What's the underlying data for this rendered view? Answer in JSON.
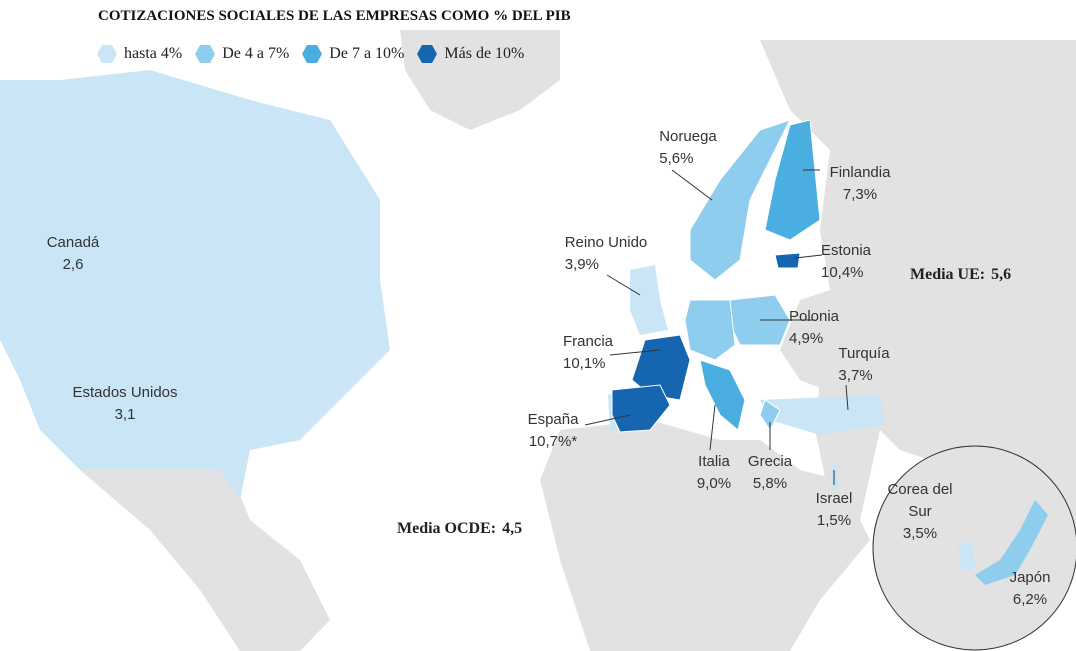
{
  "title": "COTIZACIONES SOCIALES DE LAS EMPRESAS COMO % DEL PIB",
  "legend": [
    {
      "label": "hasta 4%",
      "color": "#c9e5f6"
    },
    {
      "label": "De 4 a 7%",
      "color": "#8fcdee"
    },
    {
      "label": "De 7 a 10%",
      "color": "#4aaee0"
    },
    {
      "label": "Más de 10%",
      "color": "#1565b0"
    }
  ],
  "countries": [
    {
      "name": "Canadá",
      "value": "2,6"
    },
    {
      "name": "Estados Unidos",
      "value": "3,1"
    },
    {
      "name": "Noruega",
      "value": "5,6%"
    },
    {
      "name": "Finlandia",
      "value": "7,3%"
    },
    {
      "name": "Reino Unido",
      "value": "3,9%"
    },
    {
      "name": "Estonia",
      "value": "10,4%"
    },
    {
      "name": "Polonia",
      "value": "4,9%"
    },
    {
      "name": "Francia",
      "value": "10,1%"
    },
    {
      "name": "Turquía",
      "value": "3,7%"
    },
    {
      "name": "España",
      "value": "10,7%*"
    },
    {
      "name": "Italia",
      "value": "9,0%"
    },
    {
      "name": "Grecia",
      "value": "5,8%"
    },
    {
      "name": "Israel",
      "value": "1,5%"
    },
    {
      "name": "Corea del Sur",
      "value": "3,5%"
    },
    {
      "name": "Japón",
      "value": "6,2%"
    }
  ],
  "averages": [
    {
      "label": "Media UE:",
      "value": "5,6"
    },
    {
      "label": "Media OCDE:",
      "value": "4,5"
    }
  ]
}
